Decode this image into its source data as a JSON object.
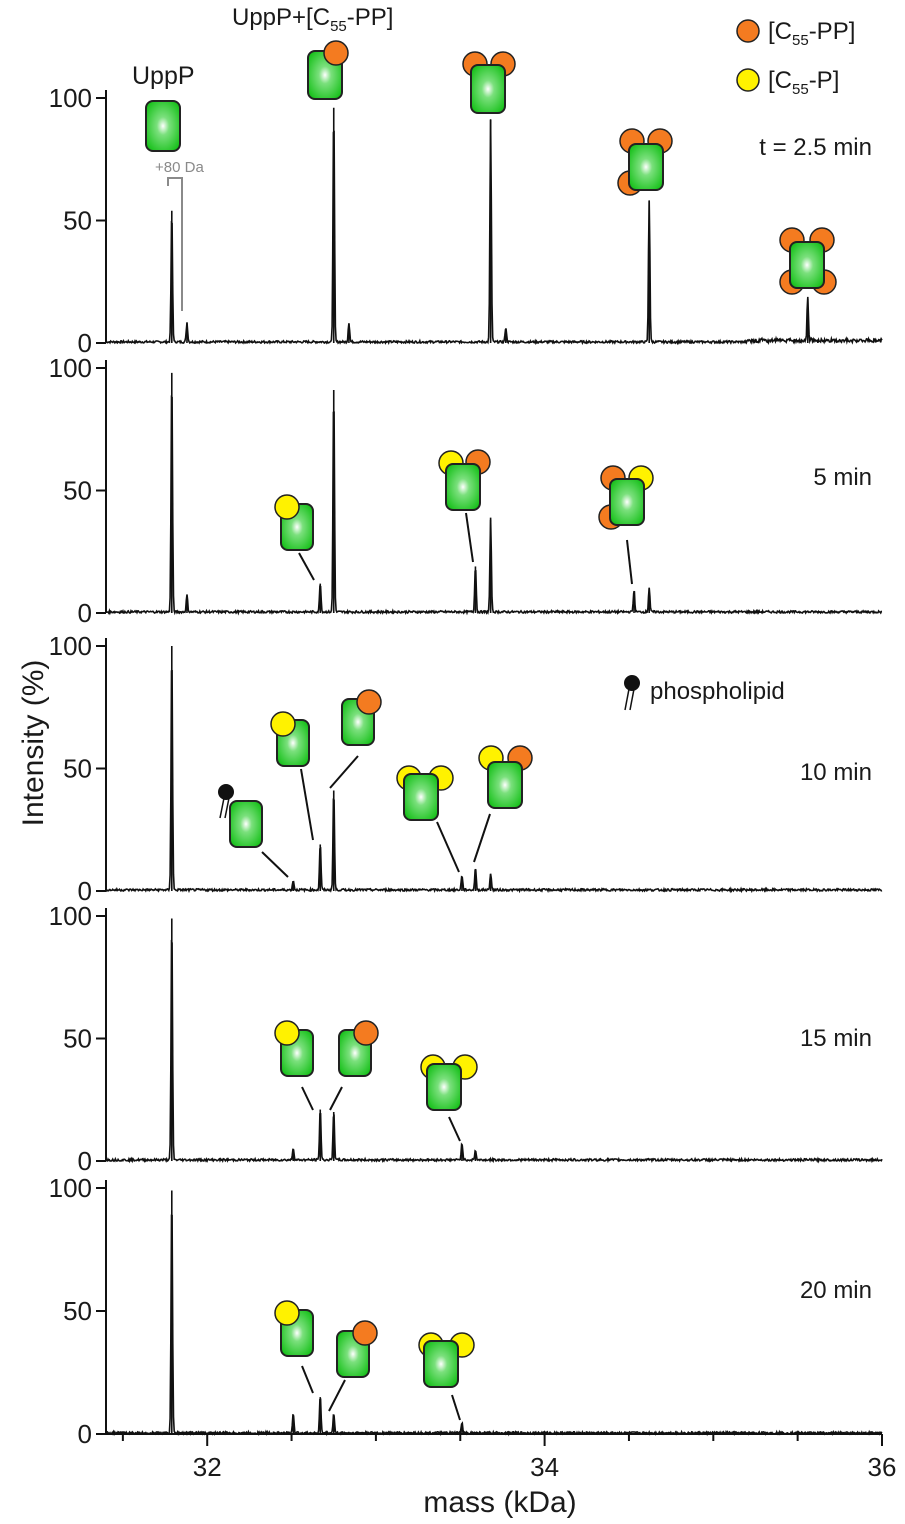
{
  "colors": {
    "c55pp": "#f47b20",
    "c55p": "#fff200",
    "protein": "#19c11c",
    "trace": "#111111",
    "annotation_gray": "#8a8a8a"
  },
  "legend": {
    "c55pp_label": "[C55-PP]",
    "c55p_label": "[C55-P]",
    "phospholipid_label": "phospholipid"
  },
  "annotations": {
    "uppp_label": "UppP",
    "uppp_c55pp_label": "UppP+[C55-PP]",
    "plus80_label": "+80 Da"
  },
  "chart_data": {
    "type": "line",
    "xlabel": "mass (kDa)",
    "ylabel": "Intensity (%)",
    "xlim": [
      31.4,
      36
    ],
    "ylim": [
      0,
      100
    ],
    "x_ticks": [
      32,
      34,
      36
    ],
    "y_ticks": [
      0,
      50,
      100
    ],
    "panels": [
      {
        "time_label": "t = 2.5 min",
        "peaks": [
          {
            "mass": 31.79,
            "intensity": 54
          },
          {
            "mass": 31.88,
            "intensity": 8
          },
          {
            "mass": 32.75,
            "intensity": 96
          },
          {
            "mass": 32.84,
            "intensity": 8
          },
          {
            "mass": 33.68,
            "intensity": 91
          },
          {
            "mass": 33.77,
            "intensity": 6
          },
          {
            "mass": 34.62,
            "intensity": 58
          },
          {
            "mass": 35.56,
            "intensity": 18
          }
        ]
      },
      {
        "time_label": "5 min",
        "peaks": [
          {
            "mass": 31.79,
            "intensity": 98
          },
          {
            "mass": 31.88,
            "intensity": 7
          },
          {
            "mass": 32.67,
            "intensity": 12
          },
          {
            "mass": 32.75,
            "intensity": 91
          },
          {
            "mass": 33.59,
            "intensity": 19
          },
          {
            "mass": 33.68,
            "intensity": 38
          },
          {
            "mass": 34.53,
            "intensity": 9
          },
          {
            "mass": 34.62,
            "intensity": 10
          }
        ]
      },
      {
        "time_label": "10 min",
        "peaks": [
          {
            "mass": 31.79,
            "intensity": 100
          },
          {
            "mass": 32.51,
            "intensity": 4
          },
          {
            "mass": 32.67,
            "intensity": 19
          },
          {
            "mass": 32.75,
            "intensity": 41
          },
          {
            "mass": 33.51,
            "intensity": 6
          },
          {
            "mass": 33.59,
            "intensity": 9
          },
          {
            "mass": 33.68,
            "intensity": 7
          }
        ]
      },
      {
        "time_label": "15 min",
        "peaks": [
          {
            "mass": 31.79,
            "intensity": 99
          },
          {
            "mass": 32.51,
            "intensity": 5
          },
          {
            "mass": 32.67,
            "intensity": 21
          },
          {
            "mass": 32.75,
            "intensity": 20
          },
          {
            "mass": 33.51,
            "intensity": 7
          },
          {
            "mass": 33.59,
            "intensity": 4
          }
        ]
      },
      {
        "time_label": "20 min",
        "peaks": [
          {
            "mass": 31.79,
            "intensity": 99
          },
          {
            "mass": 32.51,
            "intensity": 8
          },
          {
            "mass": 32.67,
            "intensity": 15
          },
          {
            "mass": 32.75,
            "intensity": 8
          },
          {
            "mass": 33.51,
            "intensity": 4
          }
        ]
      }
    ]
  }
}
